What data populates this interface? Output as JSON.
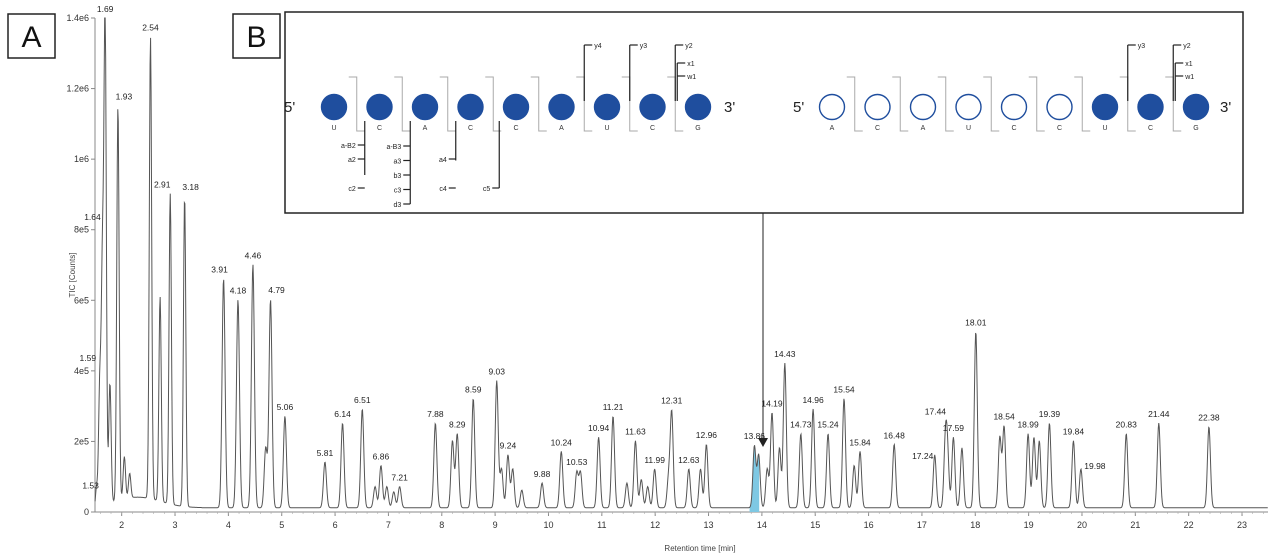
{
  "panels": {
    "a": "A",
    "b": "B"
  },
  "chart_data": {
    "type": "line",
    "xlabel": "Retention time [min]",
    "ylabel": "TIC [Counts]",
    "xlim": [
      1.0,
      23.7
    ],
    "ylim": [
      0,
      1400000
    ],
    "x_ticks": [
      2,
      3,
      4,
      5,
      6,
      7,
      8,
      9,
      10,
      11,
      12,
      13,
      14,
      15,
      16,
      17,
      18,
      19,
      20,
      21,
      22,
      23
    ],
    "y_ticks": [
      {
        "value": 0,
        "label": "0"
      },
      {
        "value": 200000,
        "label": "2e5"
      },
      {
        "value": 400000,
        "label": "4e5"
      },
      {
        "value": 600000,
        "label": "6e5"
      },
      {
        "value": 800000,
        "label": "8e5"
      },
      {
        "value": 1000000,
        "label": "1e6"
      },
      {
        "value": 1200000,
        "label": "1.2e6"
      },
      {
        "value": 1400000,
        "label": "1.4e6"
      }
    ],
    "highlighted_peak": {
      "x": 13.86,
      "color": "#7ec8e3"
    },
    "trace_color": "#555555",
    "labeled_peaks": [
      {
        "label": "1.53",
        "x": 1.53,
        "y": 60000
      },
      {
        "label": "1.59",
        "x": 1.59,
        "y": 340000
      },
      {
        "label": "1.64",
        "x": 1.64,
        "y": 660000
      },
      {
        "label": "1.69",
        "x": 1.69,
        "y": 1380000
      },
      {
        "label": "1.93",
        "x": 1.93,
        "y": 1120000
      },
      {
        "label": "2.54",
        "x": 2.54,
        "y": 1310000
      },
      {
        "label": "2.91",
        "x": 2.91,
        "y": 880000
      },
      {
        "label": "3.18",
        "x": 3.18,
        "y": 880000
      },
      {
        "label": "3.91",
        "x": 3.91,
        "y": 650000
      },
      {
        "label": "4.18",
        "x": 4.18,
        "y": 590000
      },
      {
        "label": "4.46",
        "x": 4.46,
        "y": 690000
      },
      {
        "label": "4.79",
        "x": 4.79,
        "y": 590000
      },
      {
        "label": "5.06",
        "x": 5.06,
        "y": 260000
      },
      {
        "label": "5.81",
        "x": 5.81,
        "y": 130000
      },
      {
        "label": "6.14",
        "x": 6.14,
        "y": 240000
      },
      {
        "label": "6.51",
        "x": 6.51,
        "y": 280000
      },
      {
        "label": "6.86",
        "x": 6.86,
        "y": 120000
      },
      {
        "label": "7.21",
        "x": 7.21,
        "y": 60000
      },
      {
        "label": "7.88",
        "x": 7.88,
        "y": 240000
      },
      {
        "label": "8.29",
        "x": 8.29,
        "y": 210000
      },
      {
        "label": "8.59",
        "x": 8.59,
        "y": 310000
      },
      {
        "label": "9.03",
        "x": 9.03,
        "y": 360000
      },
      {
        "label": "9.24",
        "x": 9.24,
        "y": 150000
      },
      {
        "label": "9.88",
        "x": 9.88,
        "y": 70000
      },
      {
        "label": "10.24",
        "x": 10.24,
        "y": 160000
      },
      {
        "label": "10.53",
        "x": 10.53,
        "y": 100000
      },
      {
        "label": "10.94",
        "x": 10.94,
        "y": 200000
      },
      {
        "label": "11.21",
        "x": 11.21,
        "y": 260000
      },
      {
        "label": "11.63",
        "x": 11.63,
        "y": 190000
      },
      {
        "label": "11.99",
        "x": 11.99,
        "y": 110000
      },
      {
        "label": "12.31",
        "x": 12.31,
        "y": 270000
      },
      {
        "label": "12.63",
        "x": 12.63,
        "y": 110000
      },
      {
        "label": "12.96",
        "x": 12.96,
        "y": 180000
      },
      {
        "label": "13.86",
        "x": 13.86,
        "y": 175000
      },
      {
        "label": "14.19",
        "x": 14.19,
        "y": 270000
      },
      {
        "label": "14.43",
        "x": 14.43,
        "y": 410000
      },
      {
        "label": "14.73",
        "x": 14.73,
        "y": 210000
      },
      {
        "label": "14.96",
        "x": 14.96,
        "y": 280000
      },
      {
        "label": "15.24",
        "x": 15.24,
        "y": 210000
      },
      {
        "label": "15.54",
        "x": 15.54,
        "y": 310000
      },
      {
        "label": "15.84",
        "x": 15.84,
        "y": 160000
      },
      {
        "label": "16.48",
        "x": 16.48,
        "y": 180000
      },
      {
        "label": "17.24",
        "x": 17.24,
        "y": 150000
      },
      {
        "label": "17.44",
        "x": 17.44,
        "y": 180000
      },
      {
        "label": "17.59",
        "x": 17.59,
        "y": 200000
      },
      {
        "label": "18.01",
        "x": 18.01,
        "y": 500000
      },
      {
        "label": "18.54",
        "x": 18.54,
        "y": 230000
      },
      {
        "label": "18.99",
        "x": 18.99,
        "y": 210000
      },
      {
        "label": "19.39",
        "x": 19.39,
        "y": 240000
      },
      {
        "label": "19.84",
        "x": 19.84,
        "y": 190000
      },
      {
        "label": "19.98",
        "x": 19.98,
        "y": 110000
      },
      {
        "label": "20.83",
        "x": 20.83,
        "y": 210000
      },
      {
        "label": "21.44",
        "x": 21.44,
        "y": 240000
      },
      {
        "label": "22.38",
        "x": 22.38,
        "y": 230000
      }
    ],
    "unlabeled_peaks": [
      {
        "x": 2.72,
        "y": 580000
      },
      {
        "x": 1.78,
        "y": 340000
      },
      {
        "x": 2.05,
        "y": 120000
      },
      {
        "x": 2.15,
        "y": 70000
      },
      {
        "x": 4.7,
        "y": 170000
      },
      {
        "x": 6.75,
        "y": 60000
      },
      {
        "x": 6.97,
        "y": 60000
      },
      {
        "x": 7.1,
        "y": 45000
      },
      {
        "x": 8.2,
        "y": 190000
      },
      {
        "x": 9.12,
        "y": 110000
      },
      {
        "x": 9.33,
        "y": 110000
      },
      {
        "x": 9.5,
        "y": 50000
      },
      {
        "x": 10.6,
        "y": 100000
      },
      {
        "x": 11.47,
        "y": 70000
      },
      {
        "x": 11.74,
        "y": 80000
      },
      {
        "x": 11.86,
        "y": 60000
      },
      {
        "x": 12.25,
        "y": 80000
      },
      {
        "x": 12.85,
        "y": 110000
      },
      {
        "x": 13.94,
        "y": 150000
      },
      {
        "x": 14.1,
        "y": 110000
      },
      {
        "x": 14.33,
        "y": 170000
      },
      {
        "x": 15.73,
        "y": 120000
      },
      {
        "x": 17.48,
        "y": 140000
      },
      {
        "x": 17.75,
        "y": 170000
      },
      {
        "x": 18.46,
        "y": 200000
      },
      {
        "x": 19.1,
        "y": 200000
      },
      {
        "x": 19.2,
        "y": 190000
      }
    ]
  },
  "oligo_diagram": {
    "five_prime": "5'",
    "three_prime": "3'",
    "left_strand": {
      "nucleotides": [
        "U",
        "C",
        "A",
        "C",
        "C",
        "A",
        "U",
        "C",
        "G"
      ],
      "filled": [
        true,
        true,
        true,
        true,
        true,
        true,
        true,
        true,
        true
      ],
      "y_ions": [
        "y4",
        "y3",
        "y2"
      ],
      "xw_ions": [
        "x1",
        "w1"
      ],
      "a_ion_groups": [
        [
          "a-B2",
          "a2",
          "c2"
        ],
        [
          "a-B3",
          "a3",
          "b3",
          "c3",
          "d3"
        ],
        [
          "a4",
          "c4"
        ],
        [
          "c5"
        ]
      ]
    },
    "right_strand": {
      "nucleotides": [
        "A",
        "C",
        "A",
        "U",
        "C",
        "C",
        "U",
        "C",
        "G"
      ],
      "filled": [
        false,
        false,
        false,
        false,
        false,
        false,
        true,
        true,
        true
      ],
      "y_ions": [
        "y3",
        "y2"
      ],
      "xw_ions": [
        "x1",
        "w1"
      ]
    },
    "filled_color": "#1f4e9e",
    "open_color": "#ffffff"
  }
}
